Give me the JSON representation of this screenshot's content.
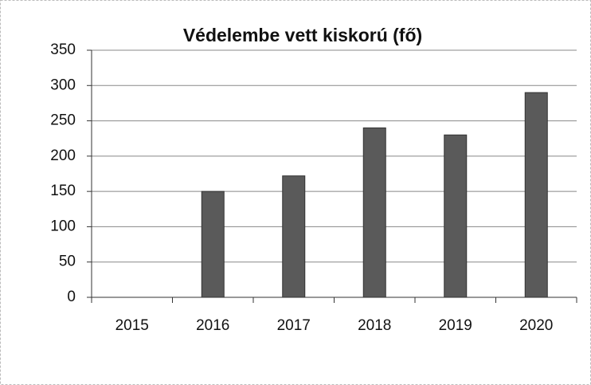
{
  "chart_data": {
    "type": "bar",
    "title": "Védelembe vett kiskorú (fő)",
    "categories": [
      "2015",
      "2016",
      "2017",
      "2018",
      "2019",
      "2020"
    ],
    "values": [
      0,
      150,
      172,
      240,
      230,
      290
    ],
    "color": "#5a5a5a",
    "ylim": [
      0,
      350
    ],
    "yticks": [
      0,
      50,
      100,
      150,
      200,
      250,
      300,
      350
    ],
    "grid": true
  }
}
